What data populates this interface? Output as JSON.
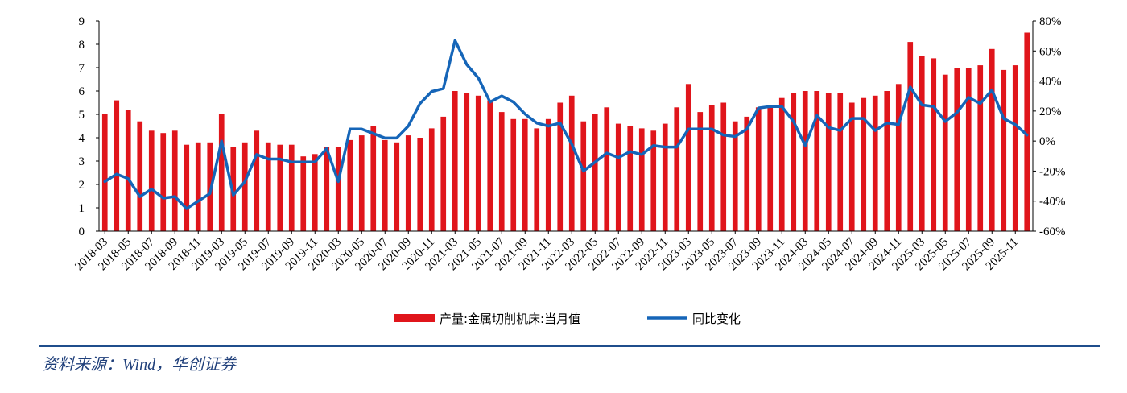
{
  "chart_data": {
    "type": "bar",
    "categories": [
      "2018-03",
      "2018-04",
      "2018-05",
      "2018-06",
      "2018-07",
      "2018-08",
      "2018-09",
      "2018-10",
      "2018-11",
      "2018-12",
      "2019-03",
      "2019-04",
      "2019-05",
      "2019-06",
      "2019-07",
      "2019-08",
      "2019-09",
      "2019-10",
      "2019-11",
      "2019-12",
      "2020-03",
      "2020-04",
      "2020-05",
      "2020-06",
      "2020-07",
      "2020-08",
      "2020-09",
      "2020-10",
      "2020-11",
      "2020-12",
      "2021-03",
      "2021-04",
      "2021-05",
      "2021-06",
      "2021-07",
      "2021-08",
      "2021-09",
      "2021-10",
      "2021-11",
      "2021-12",
      "2022-03",
      "2022-04",
      "2022-05",
      "2022-06",
      "2022-07",
      "2022-08",
      "2022-09",
      "2022-10",
      "2022-11",
      "2022-12",
      "2023-03",
      "2023-04",
      "2023-05",
      "2023-06",
      "2023-07",
      "2023-08",
      "2023-09",
      "2023-10",
      "2023-11",
      "2023-12",
      "2024-03",
      "2024-04",
      "2024-05",
      "2024-06",
      "2024-07",
      "2024-08",
      "2024-09",
      "2024-10",
      "2024-11",
      "2024-12",
      "2025-03",
      "2025-04",
      "2025-05",
      "2025-06",
      "2025-07",
      "2025-08",
      "2025-09",
      "2025-10",
      "2025-11",
      "2025-12"
    ],
    "x_tick_labels": [
      "2018-03",
      "2018-05",
      "2018-07",
      "2018-09",
      "2018-11",
      "2019-03",
      "2019-05",
      "2019-07",
      "2019-09",
      "2019-11",
      "2020-03",
      "2020-05",
      "2020-07",
      "2020-09",
      "2020-11",
      "2021-03",
      "2021-05",
      "2021-07",
      "2021-09",
      "2021-11",
      "2022-03",
      "2022-05",
      "2022-07",
      "2022-09",
      "2022-11",
      "2023-03",
      "2023-05",
      "2023-07",
      "2023-09",
      "2023-11",
      "2024-03",
      "2024-05",
      "2024-07",
      "2024-09",
      "2024-11",
      "2025-03",
      "2025-05",
      "2025-07",
      "2025-09",
      "2025-11"
    ],
    "series": [
      {
        "name": "产量:金属切削机床:当月值",
        "kind": "bar",
        "axis": "left",
        "color": "#e0151b",
        "values": [
          5.0,
          5.6,
          5.2,
          4.7,
          4.3,
          4.2,
          4.3,
          3.7,
          3.8,
          3.8,
          5.0,
          3.6,
          3.8,
          4.3,
          3.8,
          3.7,
          3.7,
          3.2,
          3.3,
          3.6,
          3.6,
          3.9,
          4.1,
          4.5,
          3.9,
          3.8,
          4.1,
          4.0,
          4.4,
          4.9,
          6.0,
          5.9,
          5.8,
          5.6,
          5.1,
          4.8,
          4.8,
          4.4,
          4.8,
          5.5,
          5.8,
          4.7,
          5.0,
          5.3,
          4.6,
          4.5,
          4.4,
          4.3,
          4.6,
          5.3,
          6.3,
          5.1,
          5.4,
          5.5,
          4.7,
          4.9,
          5.3,
          5.4,
          5.7,
          5.9,
          6.0,
          6.0,
          5.9,
          5.9,
          5.5,
          5.7,
          5.8,
          6.0,
          6.3,
          8.1,
          7.5,
          7.4,
          6.7,
          7.0,
          7.0,
          7.1,
          7.8,
          6.9,
          7.1,
          8.5
        ]
      },
      {
        "name": "同比变化",
        "kind": "line",
        "axis": "right",
        "color": "#1565b8",
        "values": [
          -27,
          -22,
          -25,
          -37,
          -32,
          -38,
          -37,
          -45,
          -40,
          -35,
          0,
          -36,
          -27,
          -9,
          -12,
          -12,
          -14,
          -14,
          -14,
          -5,
          -27,
          8,
          8,
          5,
          2,
          2,
          10,
          25,
          33,
          35,
          67,
          51,
          42,
          26,
          30,
          26,
          18,
          12,
          10,
          12,
          -2,
          -20,
          -14,
          -8,
          -11,
          -7,
          -9,
          -3,
          -4,
          -4,
          8,
          8,
          8,
          4,
          3,
          8,
          22,
          23,
          23,
          13,
          -3,
          17,
          9,
          7,
          15,
          15,
          7,
          12,
          11,
          36,
          24,
          23,
          13,
          19,
          29,
          25,
          34,
          15,
          11,
          4
        ]
      }
    ],
    "ylim_left": [
      0,
      9
    ],
    "y_ticks_left": [
      "0",
      "1",
      "2",
      "3",
      "4",
      "5",
      "6",
      "7",
      "8",
      "9"
    ],
    "ylim_right": [
      -60,
      80
    ],
    "y_ticks_right": [
      "-60%",
      "-40%",
      "-20%",
      "0%",
      "20%",
      "40%",
      "60%",
      "80%"
    ],
    "legend_position": "bottom",
    "grid": false
  },
  "source_text": "资料来源：Wind，华创证券"
}
